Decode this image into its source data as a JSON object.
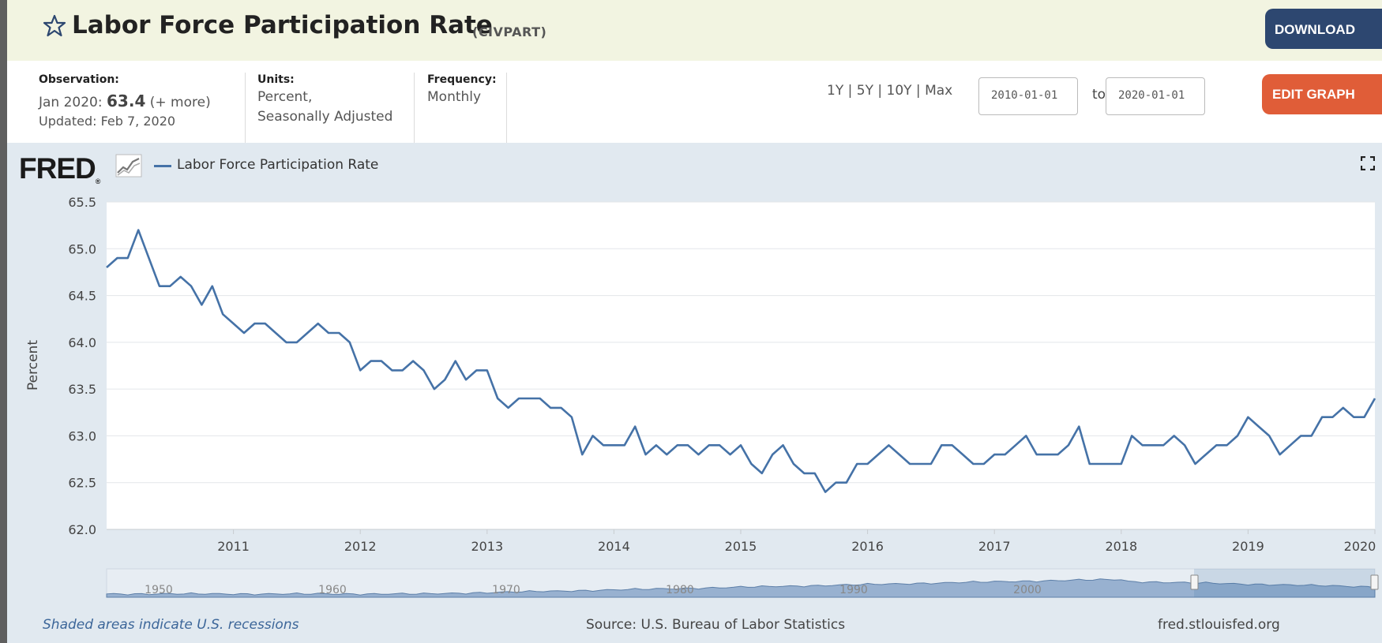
{
  "header": {
    "title": "Labor Force Participation Rate",
    "series_id": "(CIVPART)",
    "download_label": "DOWNLOAD"
  },
  "info": {
    "observation_label": "Observation:",
    "observation_date": "Jan 2020:",
    "observation_value": "63.4",
    "observation_more": "(+ more)",
    "updated": "Updated: Feb 7, 2020",
    "units_label": "Units:",
    "units_line1": "Percent,",
    "units_line2": "Seasonally Adjusted",
    "frequency_label": "Frequency:",
    "frequency_value": "Monthly"
  },
  "range": {
    "links": [
      "1Y",
      "5Y",
      "10Y",
      "Max"
    ],
    "start": "2010-01-01",
    "to_label": "to",
    "end": "2020-01-01",
    "edit_label": "EDIT GRAPH"
  },
  "chart_header": {
    "logo": "FRED",
    "logo_mark": "®",
    "legend": "Labor Force Participation Rate"
  },
  "footer": {
    "recession_note": "Shaded areas indicate U.S. recessions",
    "source": "Source: U.S. Bureau of Labor Statistics",
    "url": "fred.stlouisfed.org"
  },
  "colors": {
    "line": "#4572a7",
    "download": "#2d4770",
    "edit": "#e05d38",
    "navigator_fill": "#7d9cc4"
  },
  "chart_data": {
    "type": "line",
    "title": "Labor Force Participation Rate",
    "xlabel": "",
    "ylabel": "Percent",
    "x_start": "2010-01",
    "x_end": "2020-01",
    "ylim": [
      62.0,
      65.5
    ],
    "yticks": [
      "65.5",
      "65.0",
      "64.5",
      "64.0",
      "63.5",
      "63.0",
      "62.5",
      "62.0"
    ],
    "xticks": [
      "2011",
      "2012",
      "2013",
      "2014",
      "2015",
      "2016",
      "2017",
      "2018",
      "2019",
      "2020"
    ],
    "navigator_labels": [
      "1950",
      "1960",
      "1970",
      "1980",
      "1990",
      "2000"
    ],
    "grid": true,
    "series": [
      {
        "name": "Labor Force Participation Rate",
        "values": [
          64.8,
          64.9,
          64.9,
          65.2,
          64.9,
          64.6,
          64.6,
          64.7,
          64.6,
          64.4,
          64.6,
          64.3,
          64.2,
          64.1,
          64.2,
          64.2,
          64.1,
          64.0,
          64.0,
          64.1,
          64.2,
          64.1,
          64.1,
          64.0,
          63.7,
          63.8,
          63.8,
          63.7,
          63.7,
          63.8,
          63.7,
          63.5,
          63.6,
          63.8,
          63.6,
          63.7,
          63.7,
          63.4,
          63.3,
          63.4,
          63.4,
          63.4,
          63.3,
          63.3,
          63.2,
          62.8,
          63.0,
          62.9,
          62.9,
          62.9,
          63.1,
          62.8,
          62.9,
          62.8,
          62.9,
          62.9,
          62.8,
          62.9,
          62.9,
          62.8,
          62.9,
          62.7,
          62.6,
          62.8,
          62.9,
          62.7,
          62.6,
          62.6,
          62.4,
          62.5,
          62.5,
          62.7,
          62.7,
          62.8,
          62.9,
          62.8,
          62.7,
          62.7,
          62.7,
          62.9,
          62.9,
          62.8,
          62.7,
          62.7,
          62.8,
          62.8,
          62.9,
          63.0,
          62.8,
          62.8,
          62.8,
          62.9,
          63.1,
          62.7,
          62.7,
          62.7,
          62.7,
          63.0,
          62.9,
          62.9,
          62.9,
          63.0,
          62.9,
          62.7,
          62.8,
          62.9,
          62.9,
          63.0,
          63.2,
          63.1,
          63.0,
          62.8,
          62.9,
          63.0,
          63.0,
          63.2,
          63.2,
          63.3,
          63.2,
          63.2,
          63.4
        ]
      }
    ]
  }
}
